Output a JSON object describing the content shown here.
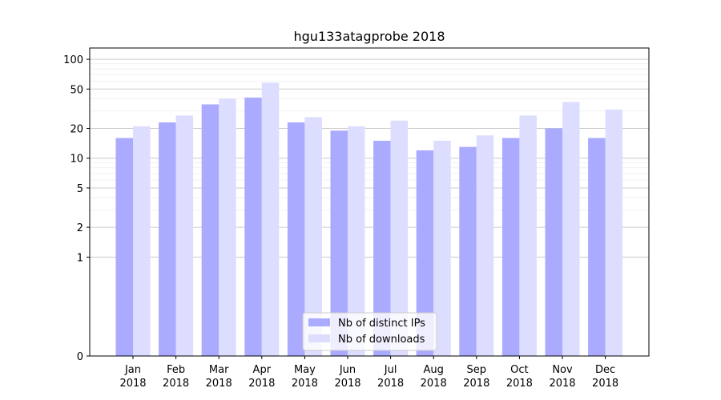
{
  "chart_data": {
    "type": "bar",
    "title": "hgu133atagprobe 2018",
    "xlabel": "",
    "ylabel": "",
    "y_scale": "symlog",
    "ylim": [
      0,
      130
    ],
    "y_ticks": [
      0,
      1,
      2,
      5,
      10,
      20,
      50,
      100
    ],
    "grid": "y",
    "legend_position": "bottom-center",
    "categories": [
      [
        "Jan",
        "2018"
      ],
      [
        "Feb",
        "2018"
      ],
      [
        "Mar",
        "2018"
      ],
      [
        "Apr",
        "2018"
      ],
      [
        "May",
        "2018"
      ],
      [
        "Jun",
        "2018"
      ],
      [
        "Jul",
        "2018"
      ],
      [
        "Aug",
        "2018"
      ],
      [
        "Sep",
        "2018"
      ],
      [
        "Oct",
        "2018"
      ],
      [
        "Nov",
        "2018"
      ],
      [
        "Dec",
        "2018"
      ]
    ],
    "series": [
      {
        "name": "Nb of distinct IPs",
        "color": "#aaaaff",
        "values": [
          16,
          23,
          35,
          41,
          23,
          19,
          15,
          12,
          13,
          16,
          20,
          16
        ]
      },
      {
        "name": "Nb of downloads",
        "color": "#ddddff",
        "values": [
          21,
          27,
          40,
          58,
          26,
          21,
          24,
          15,
          17,
          27,
          37,
          31
        ]
      }
    ]
  }
}
